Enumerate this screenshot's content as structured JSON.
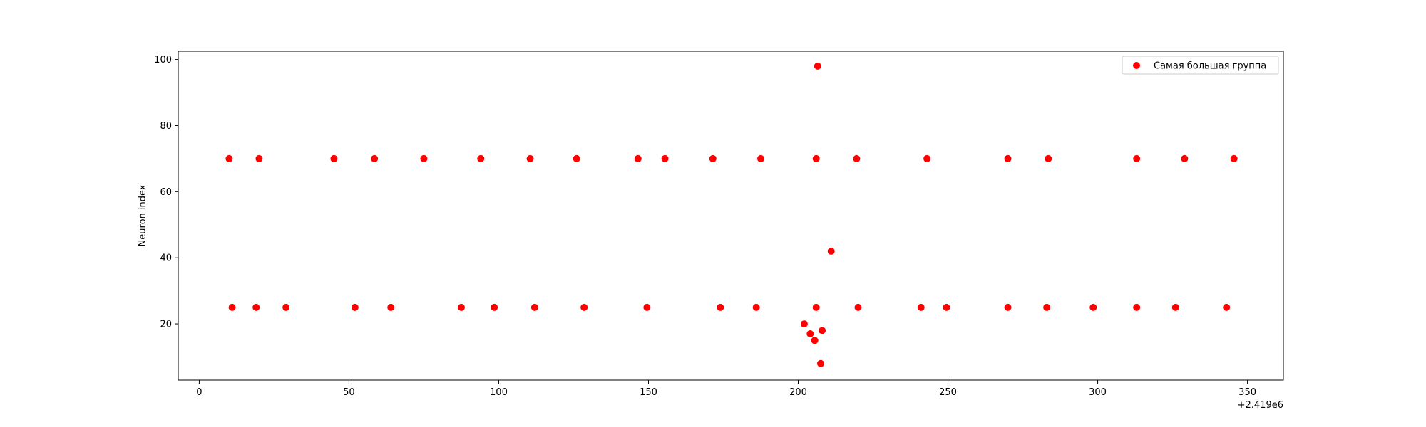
{
  "chart_data": {
    "type": "scatter",
    "ylabel": "Neuron index",
    "xlabel": "",
    "x_offset_label": "+2.419e6",
    "xlim": [
      -7,
      362
    ],
    "ylim": [
      3,
      102.5
    ],
    "xticks": [
      0,
      50,
      100,
      150,
      200,
      250,
      300,
      350
    ],
    "yticks": [
      20,
      40,
      60,
      80,
      100
    ],
    "grid": false,
    "legend_position": "top-right",
    "marker_color": "#ff0000",
    "series": [
      {
        "name": "Самая большая группа",
        "points": [
          {
            "x": 10,
            "y": 70
          },
          {
            "x": 20,
            "y": 70
          },
          {
            "x": 45,
            "y": 70
          },
          {
            "x": 58.5,
            "y": 70
          },
          {
            "x": 75,
            "y": 70
          },
          {
            "x": 94,
            "y": 70
          },
          {
            "x": 110.5,
            "y": 70
          },
          {
            "x": 126,
            "y": 70
          },
          {
            "x": 146.5,
            "y": 70
          },
          {
            "x": 155.5,
            "y": 70
          },
          {
            "x": 171.5,
            "y": 70
          },
          {
            "x": 187.5,
            "y": 70
          },
          {
            "x": 206,
            "y": 70
          },
          {
            "x": 219.5,
            "y": 70
          },
          {
            "x": 243,
            "y": 70
          },
          {
            "x": 270,
            "y": 70
          },
          {
            "x": 283.5,
            "y": 70
          },
          {
            "x": 313,
            "y": 70
          },
          {
            "x": 329,
            "y": 70
          },
          {
            "x": 345.5,
            "y": 70
          },
          {
            "x": 11,
            "y": 25
          },
          {
            "x": 19,
            "y": 25
          },
          {
            "x": 29,
            "y": 25
          },
          {
            "x": 52,
            "y": 25
          },
          {
            "x": 64,
            "y": 25
          },
          {
            "x": 87.5,
            "y": 25
          },
          {
            "x": 98.5,
            "y": 25
          },
          {
            "x": 112,
            "y": 25
          },
          {
            "x": 128.5,
            "y": 25
          },
          {
            "x": 149.5,
            "y": 25
          },
          {
            "x": 174,
            "y": 25
          },
          {
            "x": 186,
            "y": 25
          },
          {
            "x": 206,
            "y": 25
          },
          {
            "x": 220,
            "y": 25
          },
          {
            "x": 241,
            "y": 25
          },
          {
            "x": 249.5,
            "y": 25
          },
          {
            "x": 270,
            "y": 25
          },
          {
            "x": 283,
            "y": 25
          },
          {
            "x": 298.5,
            "y": 25
          },
          {
            "x": 313,
            "y": 25
          },
          {
            "x": 326,
            "y": 25
          },
          {
            "x": 343,
            "y": 25
          },
          {
            "x": 206.5,
            "y": 98
          },
          {
            "x": 211,
            "y": 42
          },
          {
            "x": 202,
            "y": 20
          },
          {
            "x": 204,
            "y": 17
          },
          {
            "x": 205.5,
            "y": 15
          },
          {
            "x": 208,
            "y": 18
          },
          {
            "x": 207.5,
            "y": 8
          }
        ]
      }
    ]
  }
}
